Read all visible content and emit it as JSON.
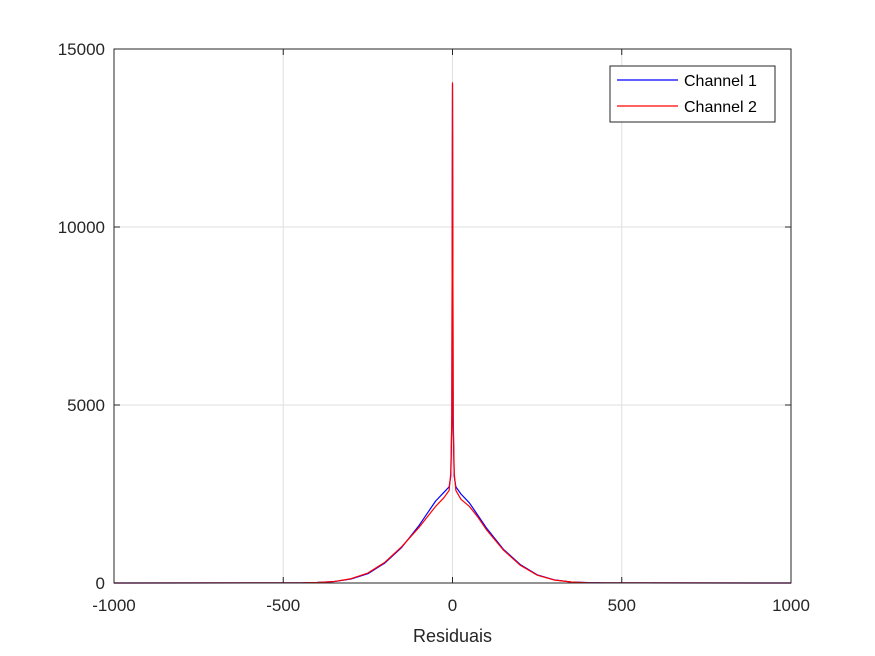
{
  "chart_data": {
    "type": "line",
    "title": "",
    "xlabel": "Residuais",
    "ylabel": "",
    "xlim": [
      -1000,
      1000
    ],
    "ylim": [
      0,
      15000
    ],
    "xticks": [
      -1000,
      -500,
      0,
      500,
      1000
    ],
    "xtick_labels": [
      "-1000",
      "-500",
      "0",
      "500",
      "1000"
    ],
    "yticks": [
      0,
      5000,
      10000,
      15000
    ],
    "ytick_labels": [
      "0",
      "5000",
      "10000",
      "15000"
    ],
    "grid": true,
    "legend_position": "top-right",
    "series": [
      {
        "name": "Channel 1",
        "color": "#0000ff",
        "x": [
          -1000,
          -450,
          -400,
          -350,
          -300,
          -250,
          -200,
          -150,
          -100,
          -75,
          -50,
          -25,
          -10,
          -5,
          -2,
          0,
          2,
          5,
          10,
          25,
          50,
          75,
          100,
          150,
          200,
          250,
          300,
          350,
          400,
          450,
          1000
        ],
        "y": [
          0,
          5,
          15,
          40,
          110,
          260,
          560,
          1000,
          1600,
          1950,
          2300,
          2550,
          2700,
          3000,
          4500,
          14000,
          4500,
          3000,
          2700,
          2500,
          2250,
          1900,
          1550,
          950,
          520,
          230,
          90,
          30,
          10,
          3,
          0
        ]
      },
      {
        "name": "Channel 2",
        "color": "#ff0000",
        "x": [
          -1000,
          -450,
          -400,
          -350,
          -300,
          -250,
          -200,
          -150,
          -100,
          -75,
          -50,
          -25,
          -10,
          -5,
          -2,
          0,
          2,
          5,
          10,
          25,
          50,
          75,
          100,
          150,
          200,
          250,
          300,
          350,
          400,
          450,
          1000
        ],
        "y": [
          0,
          5,
          15,
          40,
          120,
          280,
          580,
          1020,
          1550,
          1850,
          2150,
          2400,
          2600,
          3100,
          4700,
          14050,
          4700,
          3100,
          2600,
          2350,
          2150,
          1850,
          1500,
          930,
          500,
          220,
          85,
          28,
          9,
          3,
          0
        ]
      }
    ]
  }
}
